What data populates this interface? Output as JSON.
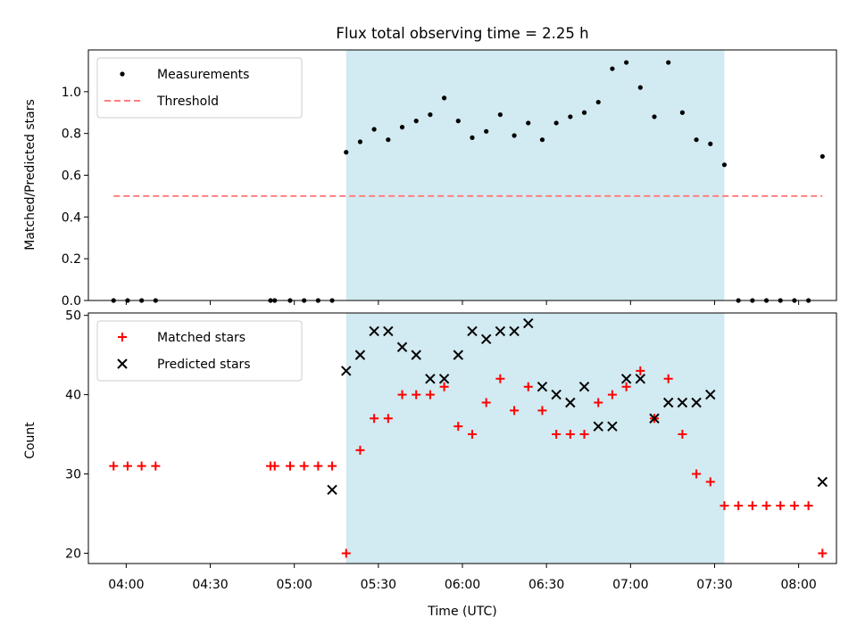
{
  "chart_data": {
    "type": "scatter",
    "title": "Flux total observing time = 2.25 h",
    "x_label": "Time (UTC)",
    "x_tick_labels": [
      "04:00",
      "04:30",
      "05:00",
      "05:30",
      "06:00",
      "06:30",
      "07:00",
      "07:30",
      "08:00"
    ],
    "x_tick_minutes": [
      240,
      270,
      300,
      330,
      360,
      390,
      420,
      450,
      480
    ],
    "x_range_minutes": [
      226.5,
      493.5
    ],
    "shaded_span_minutes": [
      318.5,
      453.5
    ],
    "shaded_color": "#add8e6",
    "panels": [
      {
        "id": "ratio",
        "ylabel": "Matched/Predicted stars",
        "ylim": [
          0,
          1.2
        ],
        "y_ticks": [
          0.0,
          0.2,
          0.4,
          0.6,
          0.8,
          1.0
        ],
        "y_tick_labels": [
          "0.0",
          "0.2",
          "0.4",
          "0.6",
          "0.8",
          "1.0"
        ],
        "legend_position": "top-left",
        "series": [
          {
            "name": "Measurements",
            "marker": "dot",
            "color": "#000000",
            "points": [
              [
                235.5,
                0
              ],
              [
                240.5,
                0
              ],
              [
                245.5,
                0
              ],
              [
                250.5,
                0
              ],
              [
                291.5,
                0
              ],
              [
                293,
                0
              ],
              [
                298.5,
                0
              ],
              [
                303.5,
                0
              ],
              [
                308.5,
                0
              ],
              [
                313.5,
                0
              ],
              [
                318.5,
                0.71
              ],
              [
                323.5,
                0.76
              ],
              [
                328.5,
                0.82
              ],
              [
                333.5,
                0.77
              ],
              [
                338.5,
                0.83
              ],
              [
                343.5,
                0.86
              ],
              [
                348.5,
                0.89
              ],
              [
                353.5,
                0.97
              ],
              [
                358.5,
                0.86
              ],
              [
                363.5,
                0.78
              ],
              [
                368.5,
                0.81
              ],
              [
                373.5,
                0.89
              ],
              [
                378.5,
                0.79
              ],
              [
                383.5,
                0.85
              ],
              [
                388.5,
                0.77
              ],
              [
                393.5,
                0.85
              ],
              [
                398.5,
                0.88
              ],
              [
                403.5,
                0.9
              ],
              [
                408.5,
                0.95
              ],
              [
                413.5,
                1.11
              ],
              [
                418.5,
                1.14
              ],
              [
                423.5,
                1.02
              ],
              [
                428.5,
                0.88
              ],
              [
                433.5,
                1.14
              ],
              [
                438.5,
                0.9
              ],
              [
                443.5,
                0.77
              ],
              [
                448.5,
                0.75
              ],
              [
                453.5,
                0.65
              ],
              [
                458.5,
                0
              ],
              [
                463.5,
                0
              ],
              [
                468.5,
                0
              ],
              [
                473.5,
                0
              ],
              [
                478.5,
                0
              ],
              [
                483.5,
                0
              ],
              [
                488.5,
                0.69
              ]
            ]
          },
          {
            "name": "Threshold",
            "marker": "dashed-line",
            "color": "#ff7f7f",
            "x": [
              235.5,
              488.5
            ],
            "y": [
              0.5,
              0.5
            ]
          }
        ]
      },
      {
        "id": "counts",
        "ylabel": "Count",
        "ylim": [
          18.7,
          50.3
        ],
        "y_ticks": [
          20,
          30,
          40,
          50
        ],
        "y_tick_labels": [
          "20",
          "30",
          "40",
          "50"
        ],
        "legend_position": "top-left",
        "series": [
          {
            "name": "Matched stars",
            "marker": "plus",
            "color": "#ff0000",
            "points": [
              [
                235.5,
                31
              ],
              [
                240.5,
                31
              ],
              [
                245.5,
                31
              ],
              [
                250.5,
                31
              ],
              [
                291.5,
                31
              ],
              [
                293,
                31
              ],
              [
                298.5,
                31
              ],
              [
                303.5,
                31
              ],
              [
                308.5,
                31
              ],
              [
                313.5,
                31
              ],
              [
                318.5,
                20
              ],
              [
                323.5,
                33
              ],
              [
                328.5,
                37
              ],
              [
                333.5,
                37
              ],
              [
                338.5,
                40
              ],
              [
                343.5,
                40
              ],
              [
                348.5,
                40
              ],
              [
                353.5,
                41
              ],
              [
                358.5,
                36
              ],
              [
                363.5,
                35
              ],
              [
                368.5,
                39
              ],
              [
                373.5,
                42
              ],
              [
                378.5,
                38
              ],
              [
                383.5,
                41
              ],
              [
                388.5,
                38
              ],
              [
                393.5,
                35
              ],
              [
                398.5,
                35
              ],
              [
                403.5,
                35
              ],
              [
                408.5,
                39
              ],
              [
                413.5,
                40
              ],
              [
                418.5,
                41
              ],
              [
                423.5,
                43
              ],
              [
                428.5,
                37
              ],
              [
                433.5,
                42
              ],
              [
                438.5,
                35
              ],
              [
                443.5,
                30
              ],
              [
                448.5,
                29
              ],
              [
                453.5,
                26
              ],
              [
                458.5,
                26
              ],
              [
                463.5,
                26
              ],
              [
                468.5,
                26
              ],
              [
                473.5,
                26
              ],
              [
                478.5,
                26
              ],
              [
                483.5,
                26
              ],
              [
                488.5,
                20
              ]
            ]
          },
          {
            "name": "Predicted stars",
            "marker": "x",
            "color": "#000000",
            "points": [
              [
                313.5,
                28
              ],
              [
                318.5,
                43
              ],
              [
                323.5,
                45
              ],
              [
                328.5,
                48
              ],
              [
                333.5,
                48
              ],
              [
                338.5,
                46
              ],
              [
                343.5,
                45
              ],
              [
                348.5,
                42
              ],
              [
                353.5,
                42
              ],
              [
                358.5,
                45
              ],
              [
                363.5,
                48
              ],
              [
                368.5,
                47
              ],
              [
                373.5,
                48
              ],
              [
                378.5,
                48
              ],
              [
                383.5,
                49
              ],
              [
                388.5,
                41
              ],
              [
                393.5,
                40
              ],
              [
                398.5,
                39
              ],
              [
                403.5,
                41
              ],
              [
                408.5,
                36
              ],
              [
                413.5,
                36
              ],
              [
                418.5,
                42
              ],
              [
                423.5,
                42
              ],
              [
                428.5,
                37
              ],
              [
                433.5,
                39
              ],
              [
                438.5,
                39
              ],
              [
                443.5,
                39
              ],
              [
                448.5,
                40
              ],
              [
                488.5,
                29
              ]
            ]
          }
        ]
      }
    ]
  }
}
